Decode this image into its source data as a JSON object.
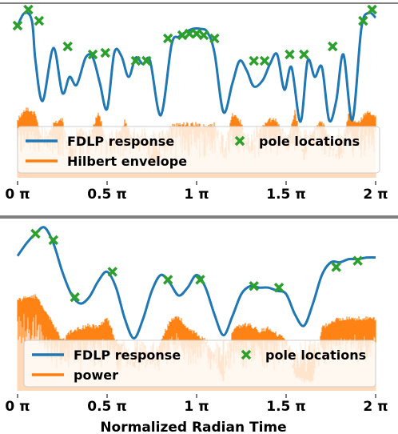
{
  "colors": {
    "fdlp": "#1f77b4",
    "envelope": "#ff7f0e",
    "envelope_light": "#ffd9b8",
    "poles": "#2ca02c"
  },
  "chart_data": [
    {
      "type": "line",
      "xlim": [
        0,
        2
      ],
      "x_ticks": [
        {
          "value": 0,
          "label": "0 π"
        },
        {
          "value": 0.5,
          "label": "0.5 π"
        },
        {
          "value": 1,
          "label": "1 π"
        },
        {
          "value": 1.5,
          "label": "1.5 π"
        },
        {
          "value": 2,
          "label": "2 π"
        }
      ],
      "legend": {
        "placement": "lower-center",
        "entries": [
          {
            "name": "FDLP response",
            "kind": "line",
            "color": "#1f77b4"
          },
          {
            "name": "Hilbert envelope",
            "kind": "line",
            "color": "#ff7f0e"
          },
          {
            "name": "pole locations",
            "kind": "marker",
            "color": "#2ca02c"
          }
        ]
      },
      "fdlp_response": {
        "x": [
          0,
          0.04,
          0.08,
          0.1,
          0.14,
          0.2,
          0.25,
          0.29,
          0.33,
          0.38,
          0.42,
          0.46,
          0.5,
          0.54,
          0.58,
          0.62,
          0.66,
          0.7,
          0.74,
          0.8,
          0.86,
          0.9,
          0.94,
          0.98,
          1.02,
          1.06,
          1.1,
          1.15,
          1.2,
          1.24,
          1.28,
          1.32,
          1.37,
          1.41,
          1.45,
          1.49,
          1.53,
          1.58,
          1.62,
          1.66,
          1.7,
          1.74,
          1.78,
          1.82,
          1.87,
          1.92,
          1.96,
          2.0
        ],
        "y": [
          0.92,
          1.0,
          0.95,
          0.7,
          0.45,
          0.78,
          0.5,
          0.6,
          0.55,
          0.72,
          0.72,
          0.56,
          0.4,
          0.75,
          0.73,
          0.6,
          0.72,
          0.68,
          0.7,
          0.36,
          0.8,
          0.85,
          0.88,
          0.9,
          0.9,
          0.88,
          0.75,
          0.38,
          0.56,
          0.7,
          0.64,
          0.54,
          0.58,
          0.68,
          0.74,
          0.52,
          0.66,
          0.32,
          0.7,
          0.6,
          0.66,
          0.33,
          0.45,
          0.74,
          0.33,
          0.9,
          1.0,
          0.97
        ]
      },
      "hilbert_envelope": {
        "x": [
          0,
          0.05,
          0.1,
          0.15,
          0.2,
          0.25,
          0.3,
          0.35,
          0.4,
          0.45,
          0.5,
          0.55,
          0.6,
          0.65,
          0.7,
          0.75,
          0.8,
          0.85,
          0.9,
          0.95,
          1.0,
          1.05,
          1.1,
          1.15,
          1.2,
          1.25,
          1.3,
          1.35,
          1.4,
          1.45,
          1.5,
          1.55,
          1.6,
          1.65,
          1.7,
          1.75,
          1.8,
          1.85,
          1.9,
          1.95,
          2.0
        ],
        "y": [
          0.35,
          0.42,
          0.38,
          0.18,
          0.32,
          0.35,
          0.08,
          0.3,
          0.22,
          0.4,
          0.2,
          0.22,
          0.34,
          0.2,
          0.25,
          0.05,
          0.12,
          0.3,
          0.32,
          0.32,
          0.32,
          0.3,
          0.32,
          0.12,
          0.38,
          0.33,
          0.12,
          0.28,
          0.35,
          0.34,
          0.2,
          0.4,
          0.1,
          0.28,
          0.34,
          0.2,
          0.1,
          0.38,
          0.32,
          0.4,
          0.36
        ]
      },
      "pole_locations": {
        "x": [
          0.0,
          0.06,
          0.12,
          0.28,
          0.42,
          0.49,
          0.66,
          0.72,
          0.84,
          0.92,
          0.96,
          1.0,
          1.04,
          1.1,
          1.32,
          1.38,
          1.52,
          1.6,
          1.76,
          1.93,
          1.98
        ],
        "y": [
          0.92,
          1.02,
          0.95,
          0.79,
          0.74,
          0.75,
          0.7,
          0.7,
          0.84,
          0.86,
          0.87,
          0.87,
          0.86,
          0.84,
          0.7,
          0.7,
          0.74,
          0.74,
          0.79,
          0.95,
          1.02
        ]
      }
    },
    {
      "type": "line",
      "xlim": [
        0,
        2
      ],
      "x_ticks": [
        {
          "value": 0,
          "label": "0 π"
        },
        {
          "value": 0.5,
          "label": "0.5 π"
        },
        {
          "value": 1,
          "label": "1 π"
        },
        {
          "value": 1.5,
          "label": "1.5 π"
        },
        {
          "value": 2,
          "label": "2 π"
        }
      ],
      "xlabel": "Normalized Radian Time",
      "legend": {
        "placement": "lower-center",
        "entries": [
          {
            "name": "FDLP response",
            "kind": "line",
            "color": "#1f77b4"
          },
          {
            "name": "power",
            "kind": "line",
            "color": "#ff7f0e"
          },
          {
            "name": "pole locations",
            "kind": "marker",
            "color": "#2ca02c"
          }
        ]
      },
      "fdlp_response": {
        "x": [
          0,
          0.05,
          0.1,
          0.15,
          0.2,
          0.25,
          0.3,
          0.35,
          0.4,
          0.45,
          0.5,
          0.55,
          0.6,
          0.65,
          0.7,
          0.75,
          0.8,
          0.85,
          0.9,
          0.95,
          1.0,
          1.05,
          1.1,
          1.15,
          1.2,
          1.25,
          1.3,
          1.35,
          1.4,
          1.45,
          1.5,
          1.55,
          1.6,
          1.65,
          1.7,
          1.75,
          1.8,
          1.85,
          1.9,
          1.95,
          2.0
        ],
        "y": [
          0.82,
          0.9,
          0.96,
          1.0,
          0.9,
          0.72,
          0.58,
          0.52,
          0.56,
          0.66,
          0.72,
          0.62,
          0.42,
          0.3,
          0.42,
          0.6,
          0.7,
          0.65,
          0.57,
          0.62,
          0.7,
          0.62,
          0.45,
          0.32,
          0.44,
          0.58,
          0.63,
          0.62,
          0.62,
          0.6,
          0.58,
          0.45,
          0.38,
          0.52,
          0.7,
          0.78,
          0.78,
          0.8,
          0.8,
          0.81,
          0.81
        ]
      },
      "power": {
        "x": [
          0,
          0.05,
          0.1,
          0.15,
          0.2,
          0.25,
          0.3,
          0.35,
          0.4,
          0.45,
          0.5,
          0.55,
          0.6,
          0.65,
          0.7,
          0.75,
          0.8,
          0.85,
          0.9,
          0.95,
          1.0,
          1.05,
          1.1,
          1.15,
          1.2,
          1.25,
          1.3,
          1.35,
          1.4,
          1.45,
          1.5,
          1.55,
          1.6,
          1.65,
          1.7,
          1.75,
          1.8,
          1.85,
          1.9,
          1.95,
          2.0
        ],
        "y": [
          0.55,
          0.58,
          0.58,
          0.5,
          0.4,
          0.3,
          0.36,
          0.38,
          0.4,
          0.38,
          0.45,
          0.3,
          0.26,
          0.12,
          0.3,
          0.15,
          0.3,
          0.42,
          0.45,
          0.38,
          0.34,
          0.3,
          0.2,
          0.04,
          0.36,
          0.4,
          0.4,
          0.36,
          0.38,
          0.34,
          0.3,
          0.08,
          0.05,
          0.05,
          0.38,
          0.42,
          0.44,
          0.44,
          0.44,
          0.44,
          0.44
        ]
      },
      "pole_locations": {
        "x": [
          0.1,
          0.2,
          0.32,
          0.53,
          0.84,
          1.02,
          1.32,
          1.46,
          1.78,
          1.9
        ],
        "y": [
          0.96,
          0.92,
          0.56,
          0.72,
          0.67,
          0.67,
          0.63,
          0.62,
          0.75,
          0.79
        ]
      }
    }
  ]
}
